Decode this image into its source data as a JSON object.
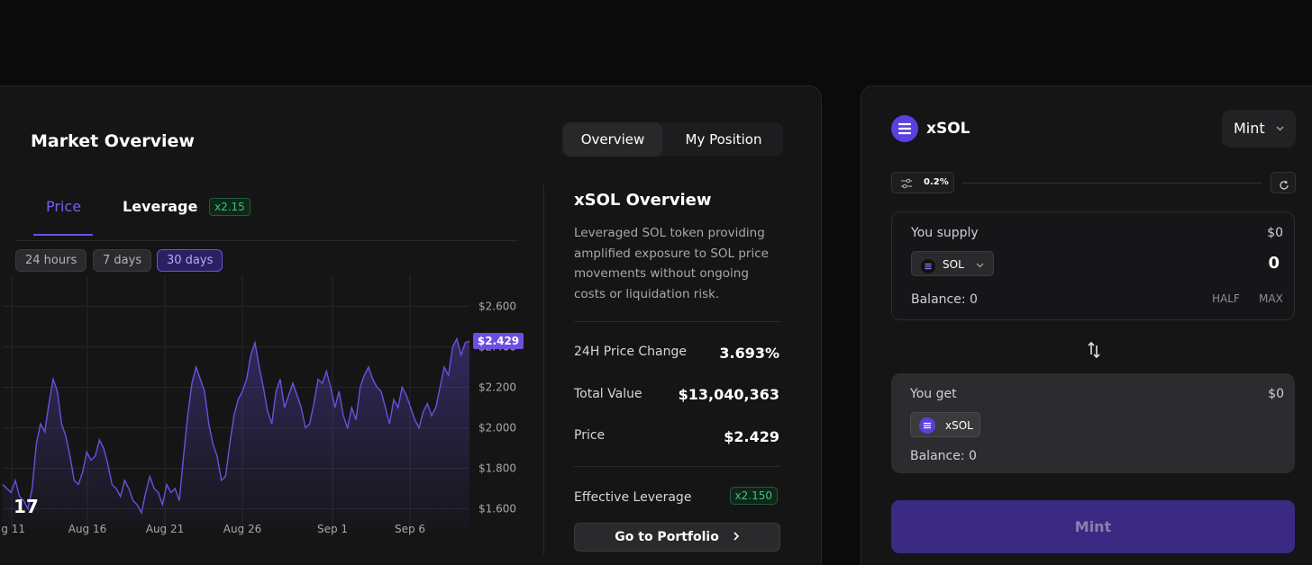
{
  "market_overview": {
    "title": "Market Overview",
    "tabs": [
      "Overview",
      "My Position"
    ],
    "chart_tabs": {
      "price": "Price",
      "leverage": "Leverage",
      "leverage_badge": "x2.15"
    },
    "ranges": [
      "24 hours",
      "7 days",
      "30 days"
    ],
    "current_price_label": "$2.429"
  },
  "chart_data": {
    "type": "line",
    "title": "",
    "x_tick_labels": [
      "ıg 11",
      "Aug 16",
      "Aug 21",
      "Aug 26",
      "Sep 1",
      "Sep 6"
    ],
    "y_tick_labels": [
      "$2.600",
      "$2.400",
      "$2.200",
      "$2.000",
      "$1.800",
      "$1.600"
    ],
    "ylim": [
      1.5,
      2.7
    ],
    "grid": true,
    "values": [
      1.72,
      1.7,
      1.68,
      1.74,
      1.66,
      1.64,
      1.6,
      1.7,
      1.92,
      2.02,
      1.98,
      2.12,
      2.24,
      2.18,
      2.02,
      1.96,
      1.86,
      1.74,
      1.72,
      1.78,
      1.88,
      1.84,
      1.86,
      1.94,
      1.9,
      1.82,
      1.72,
      1.7,
      1.66,
      1.74,
      1.7,
      1.64,
      1.62,
      1.58,
      1.68,
      1.76,
      1.7,
      1.68,
      1.62,
      1.72,
      1.68,
      1.7,
      1.64,
      1.86,
      2.06,
      2.22,
      2.3,
      2.24,
      2.18,
      2.02,
      1.92,
      1.86,
      1.74,
      1.76,
      1.92,
      2.06,
      2.14,
      2.18,
      2.24,
      2.36,
      2.42,
      2.3,
      2.2,
      2.08,
      2.02,
      2.18,
      2.24,
      2.1,
      2.16,
      2.22,
      2.16,
      2.1,
      2.0,
      2.02,
      2.12,
      2.24,
      2.22,
      2.28,
      2.2,
      2.1,
      2.18,
      2.06,
      2.0,
      2.1,
      2.04,
      2.2,
      2.26,
      2.3,
      2.24,
      2.2,
      2.18,
      2.1,
      2.02,
      2.14,
      2.1,
      2.2,
      2.16,
      2.1,
      2.04,
      2.0,
      2.08,
      2.12,
      2.06,
      2.1,
      2.2,
      2.3,
      2.26,
      2.4,
      2.44,
      2.36,
      2.42,
      2.429
    ],
    "series_color": "#6c4fe0"
  },
  "overview": {
    "title": "xSOL Overview",
    "description": "Leveraged SOL token providing amplified exposure to SOL price movements without ongoing costs or liquidation risk.",
    "stats": [
      {
        "label": "24H Price Change",
        "value": "3.693%"
      },
      {
        "label": "Total Value",
        "value": "$13,040,363"
      },
      {
        "label": "Price",
        "value": "$2.429"
      }
    ],
    "effective_leverage_label": "Effective Leverage",
    "effective_leverage_value": "x2.150",
    "portfolio_button": "Go to Portfolio"
  },
  "mint_panel": {
    "token_title": "xSOL",
    "mode": "Mint",
    "slippage": "0.2%",
    "supply": {
      "label": "You supply",
      "usd": "$0",
      "token": "SOL",
      "amount": "0",
      "balance": "Balance: 0",
      "half": "HALF",
      "max": "MAX"
    },
    "get": {
      "label": "You get",
      "usd": "$0",
      "token": "xSOL",
      "balance": "Balance: 0"
    },
    "action_button": "Mint"
  },
  "colors": {
    "accent": "#6c4fe0",
    "green": "#3ec37b",
    "bg": "#0b0b0c",
    "panel": "#151516"
  }
}
